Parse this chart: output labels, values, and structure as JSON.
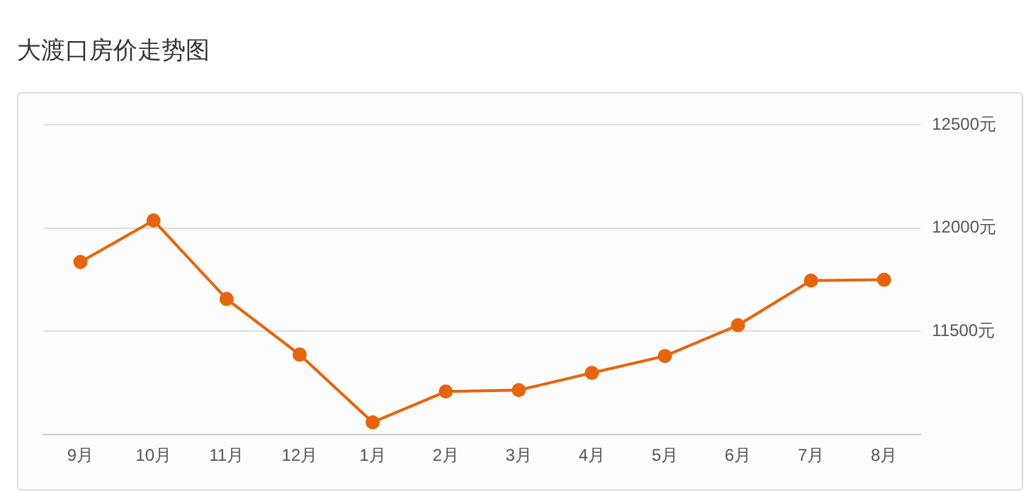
{
  "chart_data": {
    "type": "line",
    "title": "大渡口房价走势图",
    "categories": [
      "9月",
      "10月",
      "11月",
      "12月",
      "1月",
      "2月",
      "3月",
      "4月",
      "5月",
      "6月",
      "7月",
      "8月"
    ],
    "series": [
      {
        "color": "#e8640c",
        "values": [
          11836,
          12037,
          11657,
          11388,
          11060,
          11209,
          11216,
          11299,
          11381,
          11530,
          11746,
          11750
        ]
      }
    ],
    "ylim": [
      11000,
      12500
    ],
    "yticks": [
      {
        "value": 11000,
        "label": null
      },
      {
        "value": 11500,
        "label": "11500元"
      },
      {
        "value": 12000,
        "label": "12000元"
      },
      {
        "value": 12500,
        "label": "12500元"
      }
    ],
    "grid": "y",
    "legend": false,
    "marker": "circle",
    "line_style": "solid"
  }
}
